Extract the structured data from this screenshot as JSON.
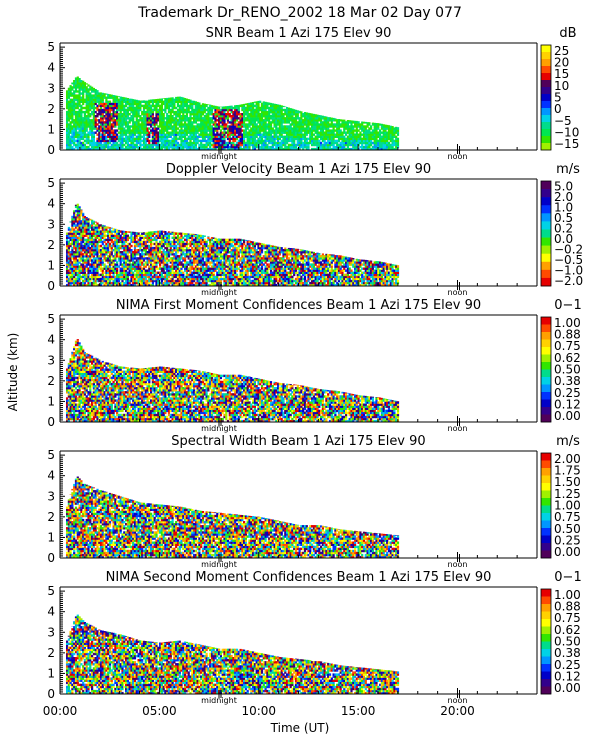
{
  "figure": {
    "title": "Trademark Dr_RENO_2002  18 Mar 02 Day 077",
    "ylabel": "Altitude (km)",
    "xlabel": "Time (UT)",
    "x_ticks": [
      "00:00",
      "05:00",
      "10:00",
      "15:00",
      "20:00"
    ],
    "x_markers": {
      "midnight": "midnight",
      "noon": "noon"
    },
    "y_ticks": [
      "0",
      "1",
      "2",
      "3",
      "4",
      "5"
    ]
  },
  "chart_data": [
    {
      "type": "heatmap",
      "title": "SNR Beam 1 Azi 175 Elev 90",
      "unit": "dB",
      "xlabel": "Time (UT)",
      "ylabel": "Altitude (km)",
      "xlim": [
        0,
        24
      ],
      "ylim": [
        0,
        5.2
      ],
      "colorbar": {
        "labels": [
          "25",
          "20",
          "15",
          "10",
          "5",
          "0",
          "−5",
          "−10",
          "−15"
        ],
        "colors": [
          "#ffff00",
          "#ffd200",
          "#ffa000",
          "#ff4b00",
          "#e60000",
          "#50005a",
          "#32008c",
          "#0000c8",
          "#0032ff",
          "#0096ff",
          "#00d2e6",
          "#00dc8c",
          "#00e650",
          "#32e600",
          "#a0f000"
        ]
      },
      "data_extent": {
        "time_start": 0.3,
        "time_end": 17.0
      },
      "top_profile": {
        "t": [
          0.3,
          0.8,
          1.2,
          2.0,
          3.0,
          4.0,
          5.0,
          6.0,
          7.0,
          8.0,
          9.0,
          10.0,
          11.0,
          12.0,
          13.0,
          14.0,
          15.0,
          16.0,
          17.0
        ],
        "alt": [
          2.9,
          3.6,
          3.3,
          2.8,
          2.6,
          2.4,
          2.5,
          2.6,
          2.3,
          2.1,
          2.2,
          2.4,
          2.2,
          1.9,
          1.7,
          1.5,
          1.4,
          1.3,
          1.1
        ]
      },
      "hotspots": [
        {
          "t": 2.3,
          "alt": 1.3,
          "half_width": 0.6,
          "half_height": 1.0,
          "level": "high"
        },
        {
          "t": 4.6,
          "alt": 1.0,
          "half_width": 0.3,
          "half_height": 0.8,
          "level": "high"
        },
        {
          "t": 8.4,
          "alt": 1.0,
          "half_width": 0.8,
          "half_height": 1.0,
          "level": "high"
        }
      ]
    },
    {
      "type": "heatmap",
      "title": "Doppler Velocity Beam 1 Azi 175 Elev 90",
      "unit": "m/s",
      "xlabel": "Time (UT)",
      "ylabel": "Altitude (km)",
      "xlim": [
        0,
        24
      ],
      "ylim": [
        0,
        5.2
      ],
      "colorbar": {
        "labels": [
          "5.0",
          "2.0",
          "1.0",
          "0.5",
          "0.2",
          "0.0",
          "−0.2",
          "−0.5",
          "−1.0",
          "−2.0"
        ],
        "colors": [
          "#50005a",
          "#32008c",
          "#0000c8",
          "#0032ff",
          "#0096ff",
          "#00d2e6",
          "#00dc8c",
          "#32e600",
          "#a0f000",
          "#ffff00",
          "#ffa000",
          "#ff4b00",
          "#e60000"
        ]
      },
      "data_extent": {
        "time_start": 0.3,
        "time_end": 17.0
      },
      "top_profile": {
        "t": [
          0.3,
          0.8,
          1.2,
          2.0,
          3.0,
          4.0,
          5.0,
          6.0,
          7.0,
          8.0,
          9.0,
          10.0,
          11.0,
          12.0,
          13.0,
          14.0,
          15.0,
          16.0,
          17.0
        ],
        "alt": [
          2.6,
          4.1,
          3.4,
          3.0,
          2.7,
          2.6,
          2.7,
          2.6,
          2.5,
          2.3,
          2.3,
          2.1,
          1.9,
          1.8,
          1.6,
          1.5,
          1.3,
          1.2,
          1.0
        ]
      }
    },
    {
      "type": "heatmap",
      "title": "NIMA First Moment Confidences Beam 1 Azi 175 Elev 90",
      "unit": "0−1",
      "xlabel": "Time (UT)",
      "ylabel": "Altitude (km)",
      "xlim": [
        0,
        24
      ],
      "ylim": [
        0,
        5.2
      ],
      "colorbar": {
        "labels": [
          "1.00",
          "0.88",
          "0.75",
          "0.62",
          "0.50",
          "0.38",
          "0.25",
          "0.12",
          "0.00"
        ],
        "colors": [
          "#e60000",
          "#ff4b00",
          "#ffa000",
          "#ffd200",
          "#ffff00",
          "#a0f000",
          "#32e600",
          "#00dc8c",
          "#00d2e6",
          "#0096ff",
          "#0032ff",
          "#0000c8",
          "#32008c",
          "#50005a"
        ]
      },
      "data_extent": {
        "time_start": 0.3,
        "time_end": 17.0
      },
      "top_profile": {
        "t": [
          0.3,
          0.8,
          1.2,
          2.0,
          3.0,
          4.0,
          5.0,
          6.0,
          7.0,
          8.0,
          9.0,
          10.0,
          11.0,
          12.0,
          13.0,
          14.0,
          15.0,
          16.0,
          17.0
        ],
        "alt": [
          2.6,
          4.1,
          3.4,
          3.0,
          2.7,
          2.6,
          2.7,
          2.6,
          2.5,
          2.3,
          2.3,
          2.1,
          1.9,
          1.8,
          1.6,
          1.5,
          1.3,
          1.2,
          1.0
        ]
      }
    },
    {
      "type": "heatmap",
      "title": "Spectral Width Beam 1 Azi 175 Elev 90",
      "unit": "m/s",
      "xlabel": "Time (UT)",
      "ylabel": "Altitude (km)",
      "xlim": [
        0,
        24
      ],
      "ylim": [
        0,
        5.2
      ],
      "colorbar": {
        "labels": [
          "2.00",
          "1.75",
          "1.50",
          "1.25",
          "1.00",
          "0.75",
          "0.50",
          "0.25",
          "0.00"
        ],
        "colors": [
          "#e60000",
          "#ff4b00",
          "#ffa000",
          "#ffd200",
          "#ffff00",
          "#a0f000",
          "#32e600",
          "#00dc8c",
          "#00d2e6",
          "#0096ff",
          "#0032ff",
          "#0000c8",
          "#32008c",
          "#50005a"
        ]
      },
      "data_extent": {
        "time_start": 0.3,
        "time_end": 17.0
      },
      "top_profile": {
        "t": [
          0.3,
          0.8,
          1.2,
          2.0,
          3.0,
          4.0,
          5.0,
          6.0,
          7.0,
          8.0,
          9.0,
          10.0,
          11.0,
          12.0,
          13.0,
          14.0,
          15.0,
          16.0,
          17.0
        ],
        "alt": [
          2.6,
          4.0,
          3.6,
          3.3,
          3.0,
          2.7,
          2.6,
          2.5,
          2.3,
          2.2,
          2.1,
          2.0,
          1.8,
          1.6,
          1.6,
          1.4,
          1.3,
          1.2,
          1.1
        ]
      }
    },
    {
      "type": "heatmap",
      "title": "NIMA Second Moment Confidences Beam 1 Azi 175 Elev 90",
      "unit": "0−1",
      "xlabel": "Time (UT)",
      "ylabel": "Altitude (km)",
      "xlim": [
        0,
        24
      ],
      "ylim": [
        0,
        5.2
      ],
      "colorbar": {
        "labels": [
          "1.00",
          "0.88",
          "0.75",
          "0.62",
          "0.50",
          "0.38",
          "0.25",
          "0.12",
          "0.00"
        ],
        "colors": [
          "#e60000",
          "#ff4b00",
          "#ffa000",
          "#ffd200",
          "#ffff00",
          "#a0f000",
          "#32e600",
          "#00dc8c",
          "#00d2e6",
          "#0096ff",
          "#0032ff",
          "#0000c8",
          "#32008c",
          "#50005a"
        ]
      },
      "data_extent": {
        "time_start": 0.3,
        "time_end": 17.0
      },
      "top_profile": {
        "t": [
          0.3,
          0.8,
          1.2,
          2.0,
          3.0,
          4.0,
          5.0,
          6.0,
          7.0,
          8.0,
          9.0,
          10.0,
          11.0,
          12.0,
          13.0,
          14.0,
          15.0,
          16.0,
          17.0
        ],
        "alt": [
          2.6,
          3.9,
          3.5,
          3.1,
          2.9,
          2.6,
          2.5,
          2.6,
          2.4,
          2.2,
          2.2,
          2.0,
          1.8,
          1.7,
          1.6,
          1.4,
          1.3,
          1.2,
          1.1
        ]
      }
    }
  ]
}
